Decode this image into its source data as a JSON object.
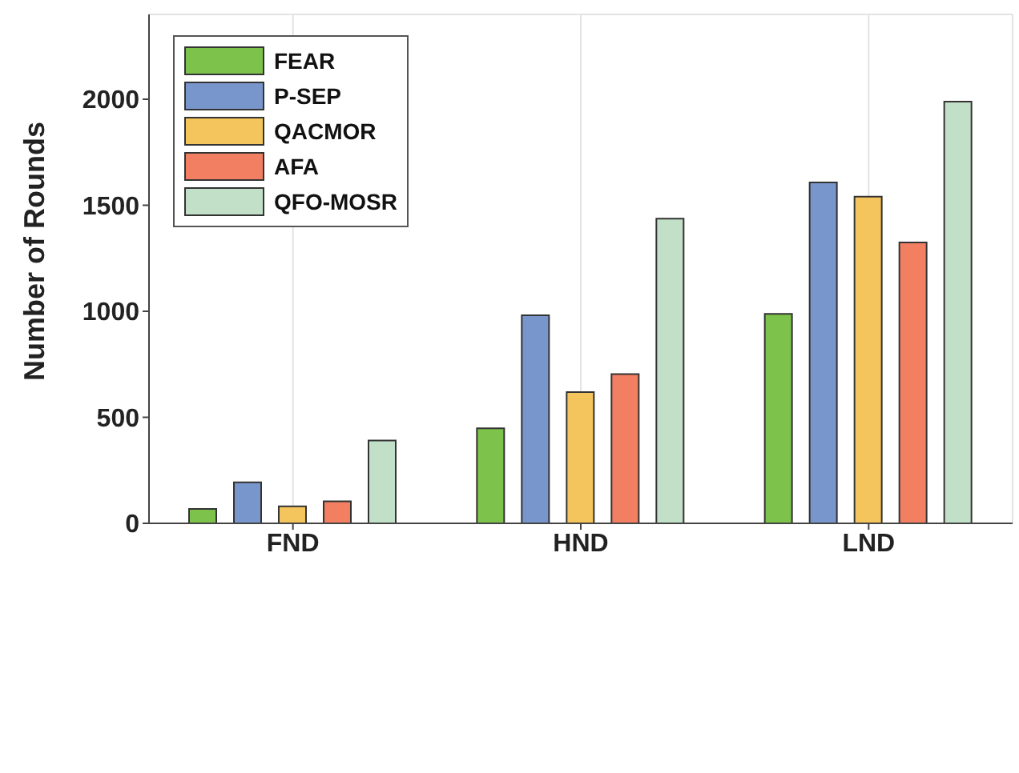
{
  "chart_data": {
    "type": "bar",
    "ylabel": "Number of Rounds",
    "categories": [
      "FND",
      "HND",
      "LND"
    ],
    "series": [
      {
        "name": "FEAR",
        "color": "#7dc24a",
        "values": [
          68,
          448,
          988
        ]
      },
      {
        "name": "P-SEP",
        "color": "#7896cc",
        "values": [
          193,
          981,
          1608
        ]
      },
      {
        "name": "QACMOR",
        "color": "#f4c55c",
        "values": [
          80,
          619,
          1541
        ]
      },
      {
        "name": "AFA",
        "color": "#f27f61",
        "values": [
          104,
          704,
          1325
        ]
      },
      {
        "name": "QFO-MOSR",
        "color": "#c2e0c8",
        "values": [
          391,
          1437,
          1989
        ]
      }
    ],
    "ylim": [
      0,
      2400
    ],
    "yticks": [
      0,
      500,
      1000,
      1500,
      2000
    ],
    "grid": true,
    "legend": "top left"
  }
}
